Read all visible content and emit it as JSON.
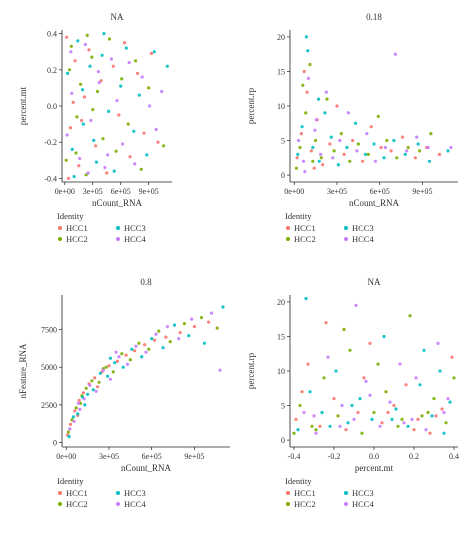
{
  "series_colors": {
    "HCC1": "#F8766D",
    "HCC2": "#7CAE00",
    "HCC3": "#00BFC4",
    "HCC4": "#C77CFF"
  },
  "chart_data": [
    {
      "type": "scatter",
      "title": "NA",
      "xlabel": "nCount_RNA",
      "ylabel": "percent.mt",
      "xlim": [
        -30000,
        1150000
      ],
      "ylim": [
        -0.42,
        0.42
      ],
      "xticks": [
        0,
        300000,
        600000,
        900000
      ],
      "xtick_labels": [
        "0e+00",
        "3e+05",
        "6e+05",
        "9e+05"
      ],
      "yticks": [
        -0.4,
        -0.2,
        0.0,
        0.2,
        0.4
      ],
      "ytick_labels": [
        "-0.4",
        "-0.2",
        "0.0",
        "0.2",
        "0.4"
      ],
      "grid": false,
      "legend": {
        "title": "Identity",
        "position": "bottom-left",
        "entries": [
          "HCC1",
          "HCC3",
          "HCC2",
          "HCC4"
        ]
      },
      "series": [
        {
          "name": "HCC1",
          "x": [
            20000,
            60000,
            110000,
            150000,
            210000,
            260000,
            330000,
            390000,
            450000,
            520000,
            580000,
            640000,
            700000,
            780000,
            850000,
            930000,
            1000000,
            40000,
            90000,
            180000
          ],
          "y": [
            0.38,
            -0.12,
            0.25,
            -0.33,
            0.05,
            0.31,
            -0.22,
            0.14,
            -0.37,
            0.22,
            -0.05,
            0.35,
            -0.28,
            0.18,
            -0.15,
            0.29,
            -0.2,
            -0.4,
            0.02,
            -0.08
          ]
        },
        {
          "name": "HCC2",
          "x": [
            15000,
            70000,
            130000,
            170000,
            230000,
            290000,
            350000,
            410000,
            480000,
            550000,
            610000,
            680000,
            760000,
            820000,
            900000,
            1060000,
            50000,
            120000,
            240000,
            300000
          ],
          "y": [
            -0.3,
            0.33,
            -0.06,
            0.12,
            -0.38,
            0.27,
            0.08,
            -0.18,
            0.37,
            -0.25,
            0.15,
            -0.1,
            0.25,
            -0.35,
            0.1,
            -0.22,
            0.2,
            -0.26,
            0.39,
            -0.02
          ]
        },
        {
          "name": "HCC3",
          "x": [
            30000,
            80000,
            140000,
            200000,
            270000,
            340000,
            400000,
            470000,
            530000,
            600000,
            660000,
            740000,
            800000,
            880000,
            960000,
            1100000,
            100000,
            190000,
            310000,
            420000
          ],
          "y": [
            0.18,
            -0.24,
            0.36,
            -0.1,
            0.22,
            -0.31,
            0.28,
            -0.03,
            -0.36,
            0.11,
            0.32,
            -0.14,
            0.06,
            -0.27,
            0.3,
            0.22,
            -0.39,
            0.09,
            -0.19,
            0.4
          ]
        },
        {
          "name": "HCC4",
          "x": [
            25000,
            75000,
            160000,
            220000,
            280000,
            360000,
            430000,
            500000,
            560000,
            620000,
            690000,
            750000,
            830000,
            910000,
            980000,
            1040000,
            65000,
            250000,
            370000,
            460000
          ],
          "y": [
            -0.16,
            0.07,
            -0.29,
            0.34,
            -0.08,
            0.19,
            -0.34,
            0.26,
            0.03,
            -0.21,
            0.24,
            -0.32,
            0.16,
            0.0,
            -0.13,
            0.08,
            0.3,
            -0.37,
            0.13,
            -0.27
          ]
        }
      ]
    },
    {
      "type": "scatter",
      "title": "0.18",
      "xlabel": "nCount_RNA",
      "ylabel": "percent.rp",
      "xlim": [
        -30000,
        1150000
      ],
      "ylim": [
        -1,
        21
      ],
      "xticks": [
        0,
        300000,
        600000,
        900000
      ],
      "xtick_labels": [
        "0e+00",
        "3e+05",
        "6e+05",
        "9e+05"
      ],
      "yticks": [
        0,
        5,
        10,
        15,
        20
      ],
      "ytick_labels": [
        "0",
        "5",
        "10",
        "15",
        "20"
      ],
      "grid": false,
      "legend": {
        "title": "Identity",
        "position": "bottom-left",
        "entries": [
          "HCC1",
          "HCC3",
          "HCC2",
          "HCC4"
        ]
      },
      "series": [
        {
          "name": "HCC1",
          "x": [
            20000,
            50000,
            90000,
            120000,
            160000,
            200000,
            250000,
            300000,
            350000,
            410000,
            480000,
            540000,
            610000,
            680000,
            760000,
            850000,
            930000,
            1020000,
            70000,
            140000
          ],
          "y": [
            2.5,
            6,
            12,
            3.5,
            8,
            1.5,
            4.5,
            10,
            3,
            5,
            2,
            7,
            4,
            3.5,
            5.5,
            2.5,
            4,
            3,
            15,
            1
          ]
        },
        {
          "name": "HCC2",
          "x": [
            15000,
            40000,
            80000,
            110000,
            150000,
            190000,
            230000,
            280000,
            330000,
            390000,
            450000,
            520000,
            590000,
            650000,
            720000,
            800000,
            880000,
            960000,
            60000,
            130000
          ],
          "y": [
            1,
            4,
            9,
            16,
            5,
            2.5,
            11,
            3.5,
            6,
            2,
            4.5,
            3,
            8.5,
            5,
            2.5,
            4,
            3.5,
            6,
            13,
            2
          ]
        },
        {
          "name": "HCC3",
          "x": [
            25000,
            55000,
            95000,
            130000,
            175000,
            215000,
            260000,
            310000,
            370000,
            430000,
            500000,
            560000,
            630000,
            700000,
            780000,
            870000,
            950000,
            1080000,
            85000,
            170000
          ],
          "y": [
            3,
            7,
            18,
            4,
            2,
            9,
            5.5,
            1.5,
            4,
            7.5,
            3,
            4.5,
            2.5,
            5,
            3,
            4.5,
            2,
            3.5,
            20,
            11
          ]
        },
        {
          "name": "HCC4",
          "x": [
            30000,
            65000,
            100000,
            145000,
            185000,
            225000,
            270000,
            320000,
            380000,
            440000,
            510000,
            570000,
            640000,
            710000,
            790000,
            860000,
            940000,
            1100000,
            75000,
            155000
          ],
          "y": [
            5,
            2,
            14,
            6.5,
            3,
            12,
            2.5,
            5,
            9,
            3.5,
            6,
            2,
            4,
            17.5,
            3.5,
            5.5,
            4,
            4,
            0.5,
            8
          ]
        }
      ]
    },
    {
      "type": "scatter",
      "title": "0.8",
      "xlabel": "nCount_RNA",
      "ylabel": "nFeature_RNA",
      "xlim": [
        -30000,
        1150000
      ],
      "ylim": [
        -300,
        9800
      ],
      "xticks": [
        0,
        300000,
        600000,
        900000
      ],
      "xtick_labels": [
        "0e+00",
        "3e+05",
        "6e+05",
        "9e+05"
      ],
      "yticks": [
        0,
        2500,
        5000,
        7500
      ],
      "ytick_labels": [
        "0",
        "2500",
        "5000",
        "7500"
      ],
      "grid": false,
      "legend": {
        "title": "Identity",
        "position": "bottom-left",
        "entries": [
          "HCC1",
          "HCC3",
          "HCC2",
          "HCC4"
        ]
      },
      "series": [
        {
          "name": "HCC1",
          "x": [
            10000,
            30000,
            60000,
            90000,
            120000,
            160000,
            200000,
            250000,
            300000,
            360000,
            420000,
            480000,
            550000,
            620000,
            700000,
            800000,
            900000,
            1000000,
            80000,
            220000
          ],
          "y": [
            500,
            1200,
            2100,
            2800,
            3300,
            3900,
            4300,
            4700,
            5100,
            5400,
            5800,
            6100,
            6500,
            6800,
            7000,
            7300,
            7700,
            8000,
            1800,
            3700
          ]
        },
        {
          "name": "HCC2",
          "x": [
            15000,
            40000,
            70000,
            100000,
            140000,
            180000,
            230000,
            280000,
            330000,
            390000,
            450000,
            510000,
            580000,
            650000,
            730000,
            830000,
            950000,
            1060000,
            110000,
            260000
          ],
          "y": [
            700,
            1500,
            2300,
            2600,
            3600,
            4100,
            4000,
            5000,
            4700,
            5900,
            5500,
            6600,
            6200,
            7400,
            6700,
            7900,
            8300,
            7600,
            3100,
            4900
          ]
        },
        {
          "name": "HCC3",
          "x": [
            20000,
            50000,
            80000,
            115000,
            150000,
            190000,
            240000,
            290000,
            340000,
            400000,
            460000,
            530000,
            600000,
            680000,
            760000,
            860000,
            970000,
            1100000,
            130000,
            310000
          ],
          "y": [
            400,
            1700,
            1900,
            3000,
            3200,
            3500,
            4600,
            4400,
            5300,
            5000,
            6200,
            5700,
            6900,
            6300,
            7800,
            7100,
            6600,
            9000,
            2500,
            5600
          ]
        },
        {
          "name": "HCC4",
          "x": [
            25000,
            55000,
            85000,
            125000,
            165000,
            210000,
            260000,
            310000,
            370000,
            430000,
            490000,
            560000,
            630000,
            710000,
            790000,
            880000,
            1020000,
            1080000,
            95000,
            350000
          ],
          "y": [
            900,
            1400,
            2600,
            2900,
            3800,
            3400,
            4800,
            4200,
            5700,
            5200,
            6400,
            6000,
            7200,
            7700,
            6900,
            8200,
            8600,
            4800,
            2200,
            6000
          ]
        }
      ]
    },
    {
      "type": "scatter",
      "title": "NA",
      "xlabel": "percent.mt",
      "ylabel": "percent.rp",
      "xlim": [
        -0.42,
        0.42
      ],
      "ylim": [
        -1,
        21
      ],
      "xticks": [
        -0.4,
        -0.2,
        0.0,
        0.2,
        0.4
      ],
      "xtick_labels": [
        "-0.4",
        "-0.2",
        "0.0",
        "0.2",
        "0.4"
      ],
      "yticks": [
        0,
        5,
        10,
        15,
        20
      ],
      "ytick_labels": [
        "0",
        "5",
        "10",
        "15",
        "20"
      ],
      "grid": false,
      "legend": {
        "title": "Identity",
        "position": "bottom-left",
        "entries": [
          "HCC1",
          "HCC3",
          "HCC2",
          "HCC4"
        ]
      },
      "series": [
        {
          "name": "HCC1",
          "x": [
            -0.39,
            -0.33,
            -0.27,
            -0.2,
            -0.14,
            -0.08,
            -0.02,
            0.04,
            0.1,
            0.16,
            0.22,
            0.28,
            0.34,
            0.39,
            -0.36,
            -0.05,
            0.2,
            0.31,
            -0.24,
            0.07
          ],
          "y": [
            3,
            11,
            2,
            6,
            1.5,
            4,
            14,
            2.5,
            5,
            8,
            3,
            1,
            4.5,
            12,
            7,
            9,
            1.5,
            3.5,
            17,
            4
          ]
        },
        {
          "name": "HCC2",
          "x": [
            -0.37,
            -0.31,
            -0.25,
            -0.18,
            -0.12,
            -0.06,
            0.0,
            0.06,
            0.12,
            0.18,
            0.24,
            0.3,
            0.36,
            0.4,
            -0.29,
            0.02,
            0.27,
            -0.15,
            0.14,
            -0.4
          ],
          "y": [
            5,
            2,
            9,
            3.5,
            13,
            1,
            4,
            7,
            2,
            18,
            3.5,
            6,
            2.5,
            9,
            1.5,
            11,
            4,
            16,
            3,
            1
          ]
        },
        {
          "name": "HCC3",
          "x": [
            -0.38,
            -0.32,
            -0.26,
            -0.19,
            -0.13,
            -0.07,
            -0.01,
            0.05,
            0.11,
            0.17,
            0.23,
            0.29,
            0.35,
            -0.34,
            -0.11,
            0.09,
            0.33,
            -0.22,
            0.25,
            0.38
          ],
          "y": [
            1.5,
            7,
            4,
            10,
            2.5,
            6,
            3,
            15,
            4.5,
            2,
            8,
            3.5,
            1,
            20.5,
            5,
            3,
            10,
            2,
            13,
            5.5
          ]
        },
        {
          "name": "HCC4",
          "x": [
            -0.35,
            -0.29,
            -0.23,
            -0.16,
            -0.1,
            -0.04,
            0.03,
            0.08,
            0.13,
            0.19,
            0.26,
            0.32,
            0.37,
            -0.3,
            -0.09,
            0.15,
            0.35,
            -0.02,
            0.21,
            -0.17
          ],
          "y": [
            4,
            1,
            12,
            5,
            3,
            8.5,
            2,
            5.5,
            11,
            3,
            1.5,
            14,
            6,
            3.5,
            19.5,
            2.5,
            4,
            6.5,
            9,
            2
          ]
        }
      ]
    }
  ]
}
